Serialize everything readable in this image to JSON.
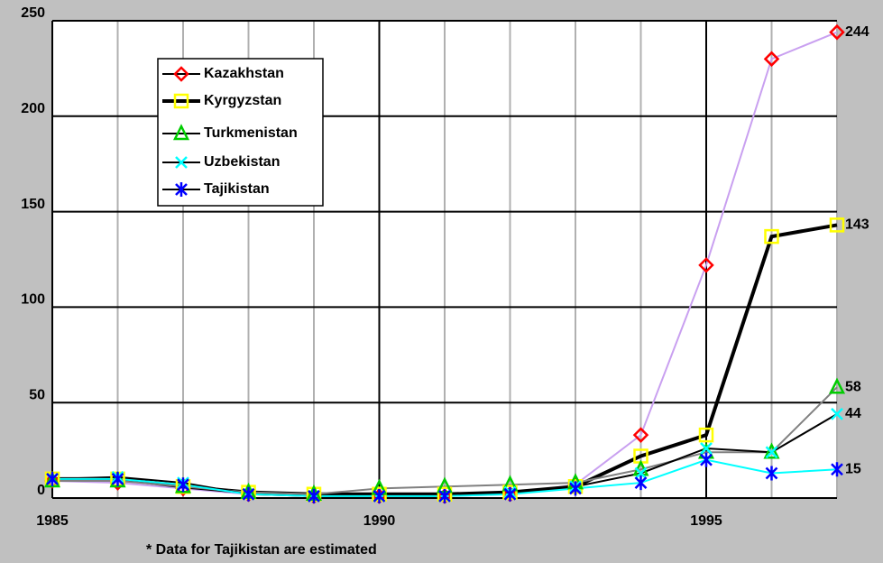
{
  "chart_data": {
    "type": "line",
    "annotation": "* Data for Tajikistan are estimated",
    "x": [
      1985,
      1986,
      1987,
      1988,
      1989,
      1990,
      1991,
      1992,
      1993,
      1994,
      1995,
      1996,
      1997
    ],
    "xlim": [
      1985,
      1997
    ],
    "xticks": [
      1985,
      1990,
      1995
    ],
    "xminorticks": [
      1986,
      1987,
      1988,
      1989,
      1991,
      1992,
      1993,
      1994,
      1996,
      1997
    ],
    "ylim": [
      0,
      250
    ],
    "yticks": [
      0,
      50,
      100,
      150,
      200,
      250
    ],
    "grid": true,
    "legend": "upper left",
    "series": [
      {
        "name": "Kazakhstan",
        "line_color": "#c9a0f0",
        "marker_color": "#ff0000",
        "marker": "diamond",
        "line_width": 2,
        "values": [
          9,
          8,
          5,
          2,
          1,
          1,
          1,
          2,
          7,
          33,
          122,
          230,
          244
        ]
      },
      {
        "name": "Kyrgyzstan",
        "line_color": "#000000",
        "marker_color": "#ffff00",
        "marker": "square",
        "line_width": 4,
        "values": [
          10,
          10,
          6,
          3,
          2,
          2,
          2,
          3,
          6,
          22,
          33,
          137,
          143
        ]
      },
      {
        "name": "Turkmenistan",
        "line_color": "#808080",
        "marker_color": "#00cc00",
        "marker": "triangle",
        "line_width": 2,
        "values": [
          9,
          9,
          6,
          3,
          2,
          5,
          6,
          7,
          8,
          15,
          24,
          24,
          58
        ]
      },
      {
        "name": "Uzbekistan",
        "line_color": "#000000",
        "marker_color": "#00ffff",
        "marker": "x",
        "line_width": 2,
        "values": [
          10,
          11,
          8,
          2,
          1,
          1,
          1,
          3,
          6,
          13,
          26,
          24,
          44
        ]
      },
      {
        "name": "Tajikistan",
        "line_color": "#00ffff",
        "marker_color": "#0000ff",
        "marker": "star",
        "line_width": 2,
        "values": [
          10,
          10,
          7,
          2,
          1,
          1,
          1,
          2,
          5,
          8,
          20,
          13,
          15
        ]
      }
    ]
  }
}
